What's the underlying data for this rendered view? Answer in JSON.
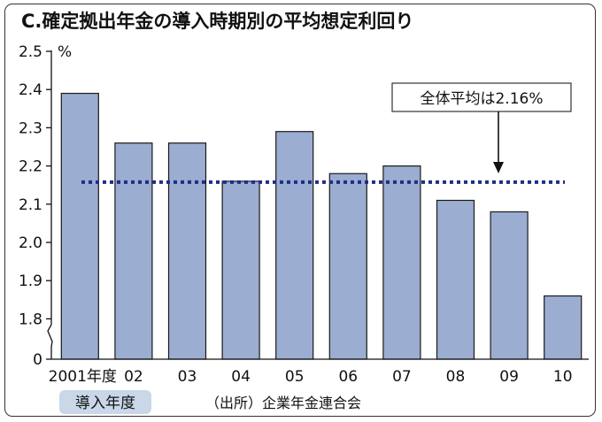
{
  "chart_data": {
    "type": "bar",
    "title": "C.確定拠出年金の導入時期別の平均想定利回り",
    "unit": "%",
    "categories": [
      "2001年度",
      "02",
      "03",
      "04",
      "05",
      "06",
      "07",
      "08",
      "09",
      "10"
    ],
    "values": [
      2.39,
      2.26,
      2.26,
      2.16,
      2.29,
      2.18,
      2.2,
      2.11,
      2.08,
      1.86
    ],
    "y_ticks": [
      "2.5",
      "2.4",
      "2.3",
      "2.2",
      "2.1",
      "2.0",
      "1.9",
      "1.8",
      "0"
    ],
    "ylim": [
      1.75,
      2.5
    ],
    "axis_break": true,
    "average": {
      "value": 2.16,
      "label": "全体平均は2.16%"
    },
    "xlabel": "導入年度",
    "source": "（出所）企業年金連合会",
    "colors": {
      "bar": "#9badd0",
      "bar_edge": "#1a1a1a",
      "average_line": "#1f2e8a",
      "xlabel_bg": "#c9d7e9"
    },
    "grid": false
  }
}
